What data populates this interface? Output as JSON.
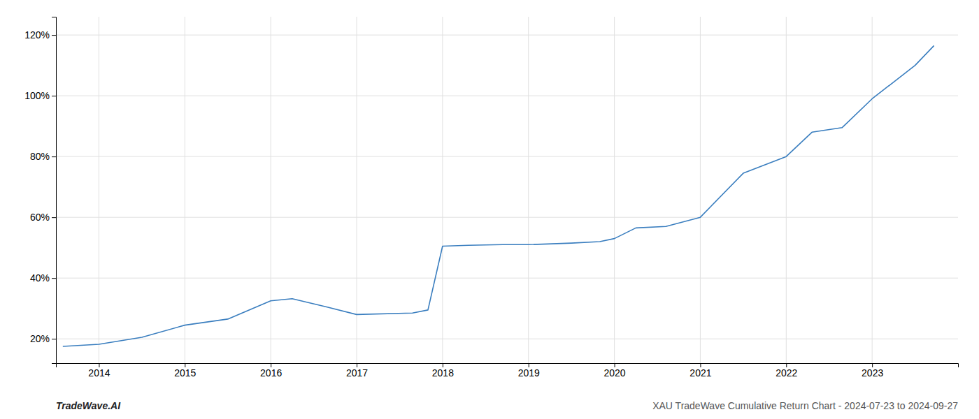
{
  "chart_data": {
    "type": "line",
    "title": "XAU TradeWave Cumulative Return Chart - 2024-07-23 to 2024-09-27",
    "annotations": [
      "TradeWave.AI"
    ],
    "x": [
      2013.58,
      2014.0,
      2014.5,
      2015.0,
      2015.5,
      2016.0,
      2016.25,
      2016.65,
      2017.0,
      2017.65,
      2017.83,
      2018.0,
      2018.3,
      2018.7,
      2019.0,
      2019.5,
      2019.83,
      2020.0,
      2020.25,
      2020.6,
      2021.0,
      2021.5,
      2022.0,
      2022.3,
      2022.65,
      2023.0,
      2023.5,
      2023.72
    ],
    "values": [
      17.5,
      18.2,
      20.5,
      24.5,
      26.5,
      32.5,
      33.2,
      30.5,
      28.0,
      28.5,
      29.5,
      50.5,
      50.8,
      51.0,
      51.0,
      51.5,
      52.0,
      53.0,
      56.5,
      57.0,
      60.0,
      74.5,
      80.0,
      88.0,
      89.5,
      99.0,
      110.0,
      116.5
    ],
    "color": "#3a7ebf",
    "xlim": [
      2013.5,
      2024.0
    ],
    "xticks": [
      2014,
      2015,
      2016,
      2017,
      2018,
      2019,
      2020,
      2021,
      2022,
      2023
    ],
    "ylim": [
      12,
      126
    ],
    "yticks": [
      {
        "value": 20,
        "label": "20%"
      },
      {
        "value": 40,
        "label": "40%"
      },
      {
        "value": 60,
        "label": "60%"
      },
      {
        "value": 80,
        "label": "80%"
      },
      {
        "value": 100,
        "label": "100%"
      },
      {
        "value": 120,
        "label": "120%"
      }
    ],
    "grid": true
  }
}
